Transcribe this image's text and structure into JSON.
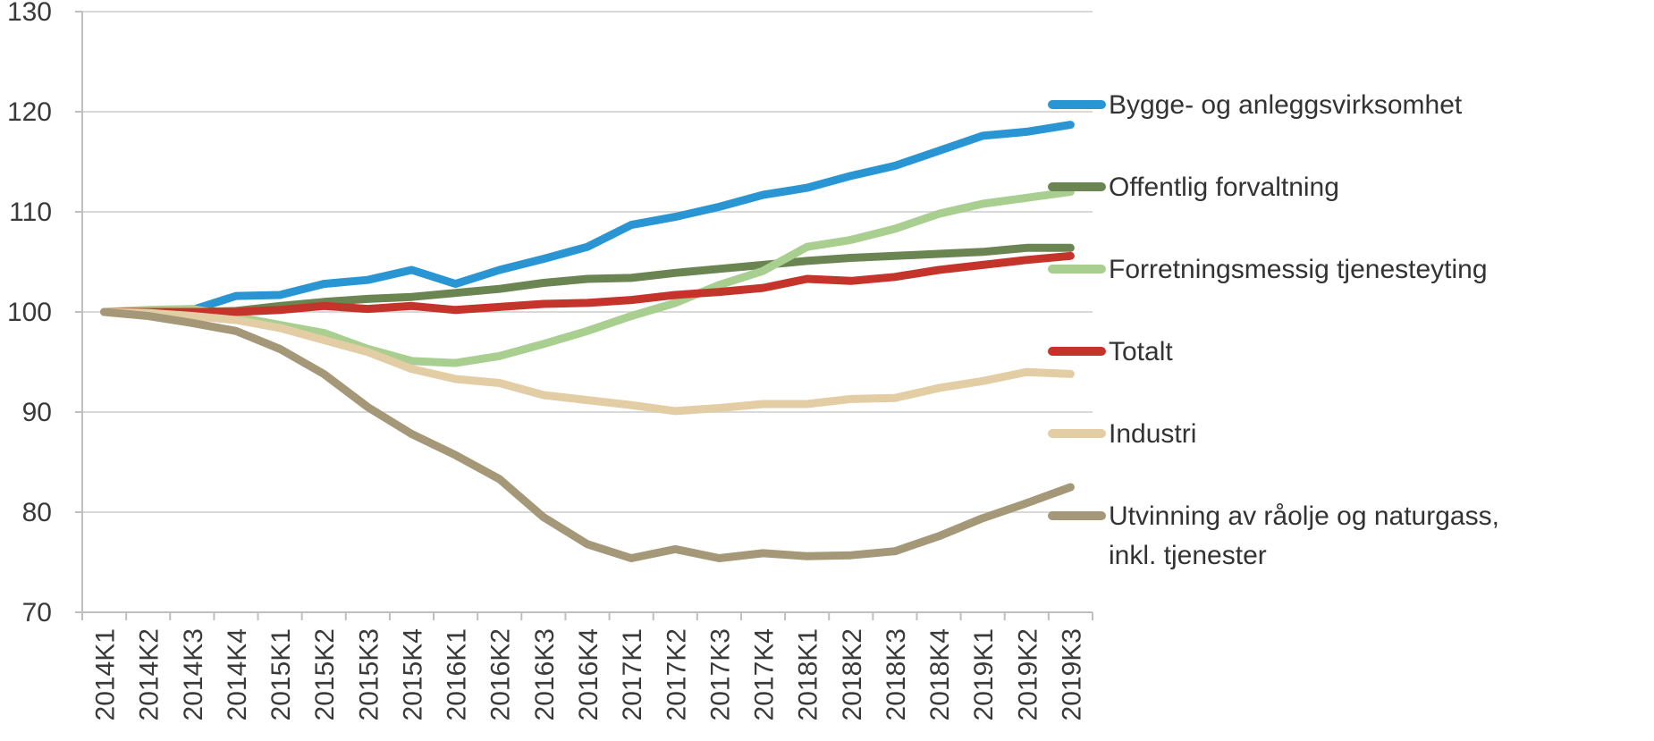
{
  "chart_data": {
    "type": "line",
    "title": "",
    "xlabel": "",
    "ylabel": "",
    "grid": "horizontal",
    "legend_position": "right",
    "y_axis": {
      "min": 70,
      "max": 130,
      "step": 10,
      "tick_labels": [
        "70",
        "80",
        "90",
        "100",
        "110",
        "120",
        "130"
      ]
    },
    "categories": [
      "2014K1",
      "2014K2",
      "2014K3",
      "2014K4",
      "2015K1",
      "2015K2",
      "2015K3",
      "2015K4",
      "2016K1",
      "2016K2",
      "2016K3",
      "2016K4",
      "2017K1",
      "2017K2",
      "2017K3",
      "2017K4",
      "2018K1",
      "2018K2",
      "2018K3",
      "2018K4",
      "2019K1",
      "2019K2",
      "2019K3"
    ],
    "series": [
      {
        "name": "Bygge- og anleggsvirksomhet",
        "color": "#2a95d3",
        "legend_lines": [
          "Bygge- og anleggsvirksomhet"
        ],
        "values": [
          100,
          100.1,
          100.2,
          101.6,
          101.7,
          102.8,
          103.2,
          104.2,
          102.8,
          104.2,
          105.3,
          106.5,
          108.7,
          109.5,
          110.5,
          111.7,
          112.4,
          113.6,
          114.6,
          116.1,
          117.6,
          118.0,
          118.7
        ]
      },
      {
        "name": "Offentlig forvaltning",
        "color": "#6b8552",
        "legend_lines": [
          "Offentlig forvaltning"
        ],
        "values": [
          100,
          100.0,
          100.0,
          100.1,
          100.6,
          101.0,
          101.3,
          101.5,
          101.9,
          102.3,
          102.9,
          103.3,
          103.4,
          103.9,
          104.3,
          104.7,
          105.1,
          105.4,
          105.6,
          105.8,
          106.0,
          106.4,
          106.4
        ]
      },
      {
        "name": "Forretningsmessig tjenesteyting",
        "color": "#a9cf90",
        "legend_lines": [
          "Forretningsmessig tjenesteyting"
        ],
        "values": [
          100,
          100.2,
          100.3,
          99.5,
          98.7,
          97.9,
          96.3,
          95.1,
          94.9,
          95.6,
          96.8,
          98.1,
          99.6,
          100.9,
          102.7,
          104.1,
          106.5,
          107.2,
          108.3,
          109.8,
          110.8,
          111.4,
          112.0
        ]
      },
      {
        "name": "Totalt",
        "color": "#c5342b",
        "legend_lines": [
          "Totalt"
        ],
        "values": [
          100,
          100.0,
          100.0,
          100.0,
          100.2,
          100.6,
          100.3,
          100.6,
          100.2,
          100.5,
          100.8,
          100.9,
          101.2,
          101.7,
          102.0,
          102.4,
          103.3,
          103.1,
          103.5,
          104.2,
          104.7,
          105.2,
          105.6
        ]
      },
      {
        "name": "Industri",
        "color": "#e3cda4",
        "legend_lines": [
          "Industri"
        ],
        "values": [
          100,
          99.9,
          99.6,
          99.2,
          98.4,
          97.2,
          96.0,
          94.3,
          93.3,
          92.9,
          91.7,
          91.2,
          90.7,
          90.1,
          90.4,
          90.8,
          90.8,
          91.3,
          91.4,
          92.4,
          93.1,
          94.0,
          93.8
        ]
      },
      {
        "name": "Utvinning av råolje og naturgass, inkl. tjenester",
        "color": "#a59878",
        "legend_lines": [
          "Utvinning av råolje og naturgass,",
          "inkl. tjenester"
        ],
        "values": [
          100,
          99.6,
          98.9,
          98.1,
          96.3,
          93.8,
          90.5,
          87.8,
          85.7,
          83.3,
          79.5,
          76.8,
          75.4,
          76.3,
          75.4,
          75.9,
          75.6,
          75.7,
          76.1,
          77.6,
          79.4,
          80.9,
          82.5
        ]
      }
    ]
  }
}
